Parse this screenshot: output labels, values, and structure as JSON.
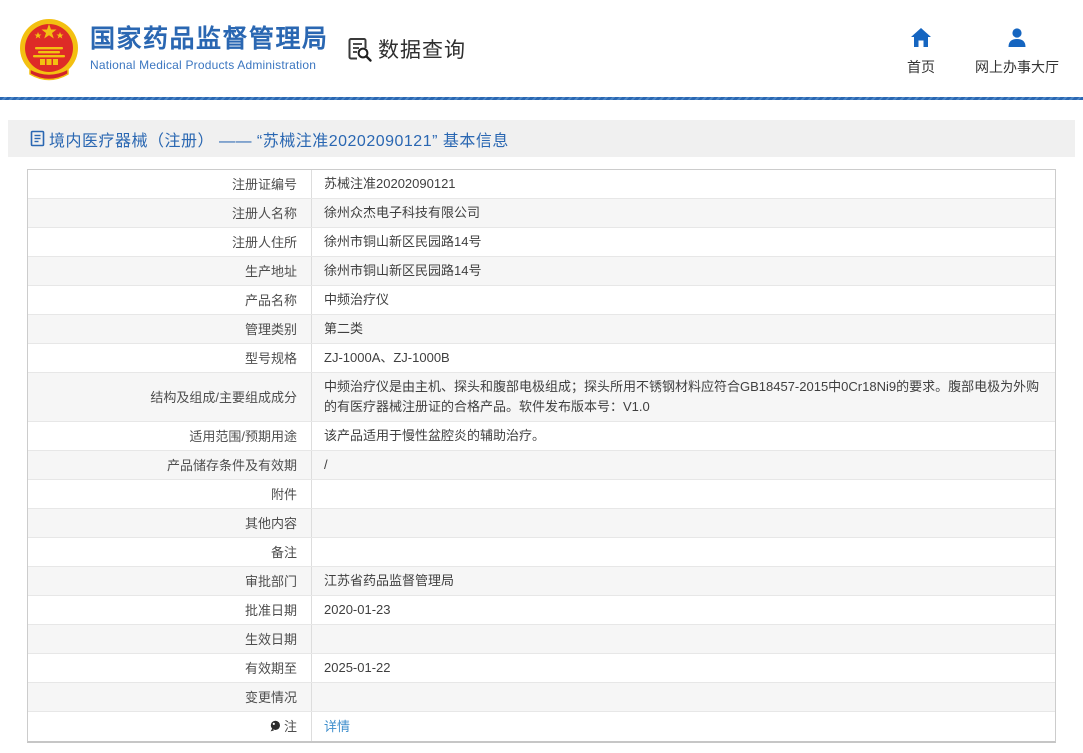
{
  "header": {
    "org_name": "国家药品监督管理局",
    "org_name_en": "National Medical Products Administration",
    "section_label": "数据查询",
    "nav": [
      {
        "label": "首页",
        "icon": "home-icon"
      },
      {
        "label": "网上办事大厅",
        "icon": "user-icon"
      }
    ]
  },
  "page": {
    "title": "境内医疗器械（注册） —— “苏械注准20202090121” 基本信息"
  },
  "table": {
    "rows": [
      {
        "label": "注册证编号",
        "value": "苏械注准20202090121"
      },
      {
        "label": "注册人名称",
        "value": "徐州众杰电子科技有限公司"
      },
      {
        "label": "注册人住所",
        "value": "徐州市铜山新区民园路14号"
      },
      {
        "label": "生产地址",
        "value": "徐州市铜山新区民园路14号"
      },
      {
        "label": "产品名称",
        "value": "中频治疗仪"
      },
      {
        "label": "管理类别",
        "value": "第二类"
      },
      {
        "label": "型号规格",
        "value": "ZJ-1000A、ZJ-1000B"
      },
      {
        "label": "结构及组成/主要组成成分",
        "value": "中频治疗仪是由主机、探头和腹部电极组成；探头所用不锈钢材料应符合GB18457-2015中0Cr18Ni9的要求。腹部电极为外购的有医疗器械注册证的合格产品。软件发布版本号：V1.0",
        "multiline": true
      },
      {
        "label": "适用范围/预期用途",
        "value": "该产品适用于慢性盆腔炎的辅助治疗。"
      },
      {
        "label": "产品储存条件及有效期",
        "value": "/"
      },
      {
        "label": "附件",
        "value": ""
      },
      {
        "label": "其他内容",
        "value": ""
      },
      {
        "label": "备注",
        "value": ""
      },
      {
        "label": "审批部门",
        "value": "江苏省药品监督管理局"
      },
      {
        "label": "批准日期",
        "value": "2020-01-23"
      },
      {
        "label": "生效日期",
        "value": ""
      },
      {
        "label": "有效期至",
        "value": "2025-01-22"
      },
      {
        "label": "变更情况",
        "value": ""
      },
      {
        "label": "注",
        "value": "详情",
        "link": true,
        "label_icon": "bulb-icon"
      }
    ]
  },
  "colors": {
    "brand_blue": "#2a67b2",
    "brand_blue_light": "#3b76c0",
    "nav_icon_blue": "#1565c0",
    "link_blue": "#3e8ecc",
    "emblem_red": "#de2b27",
    "emblem_gold": "#f3c011",
    "title_bar_bg": "#f0f0f0"
  }
}
